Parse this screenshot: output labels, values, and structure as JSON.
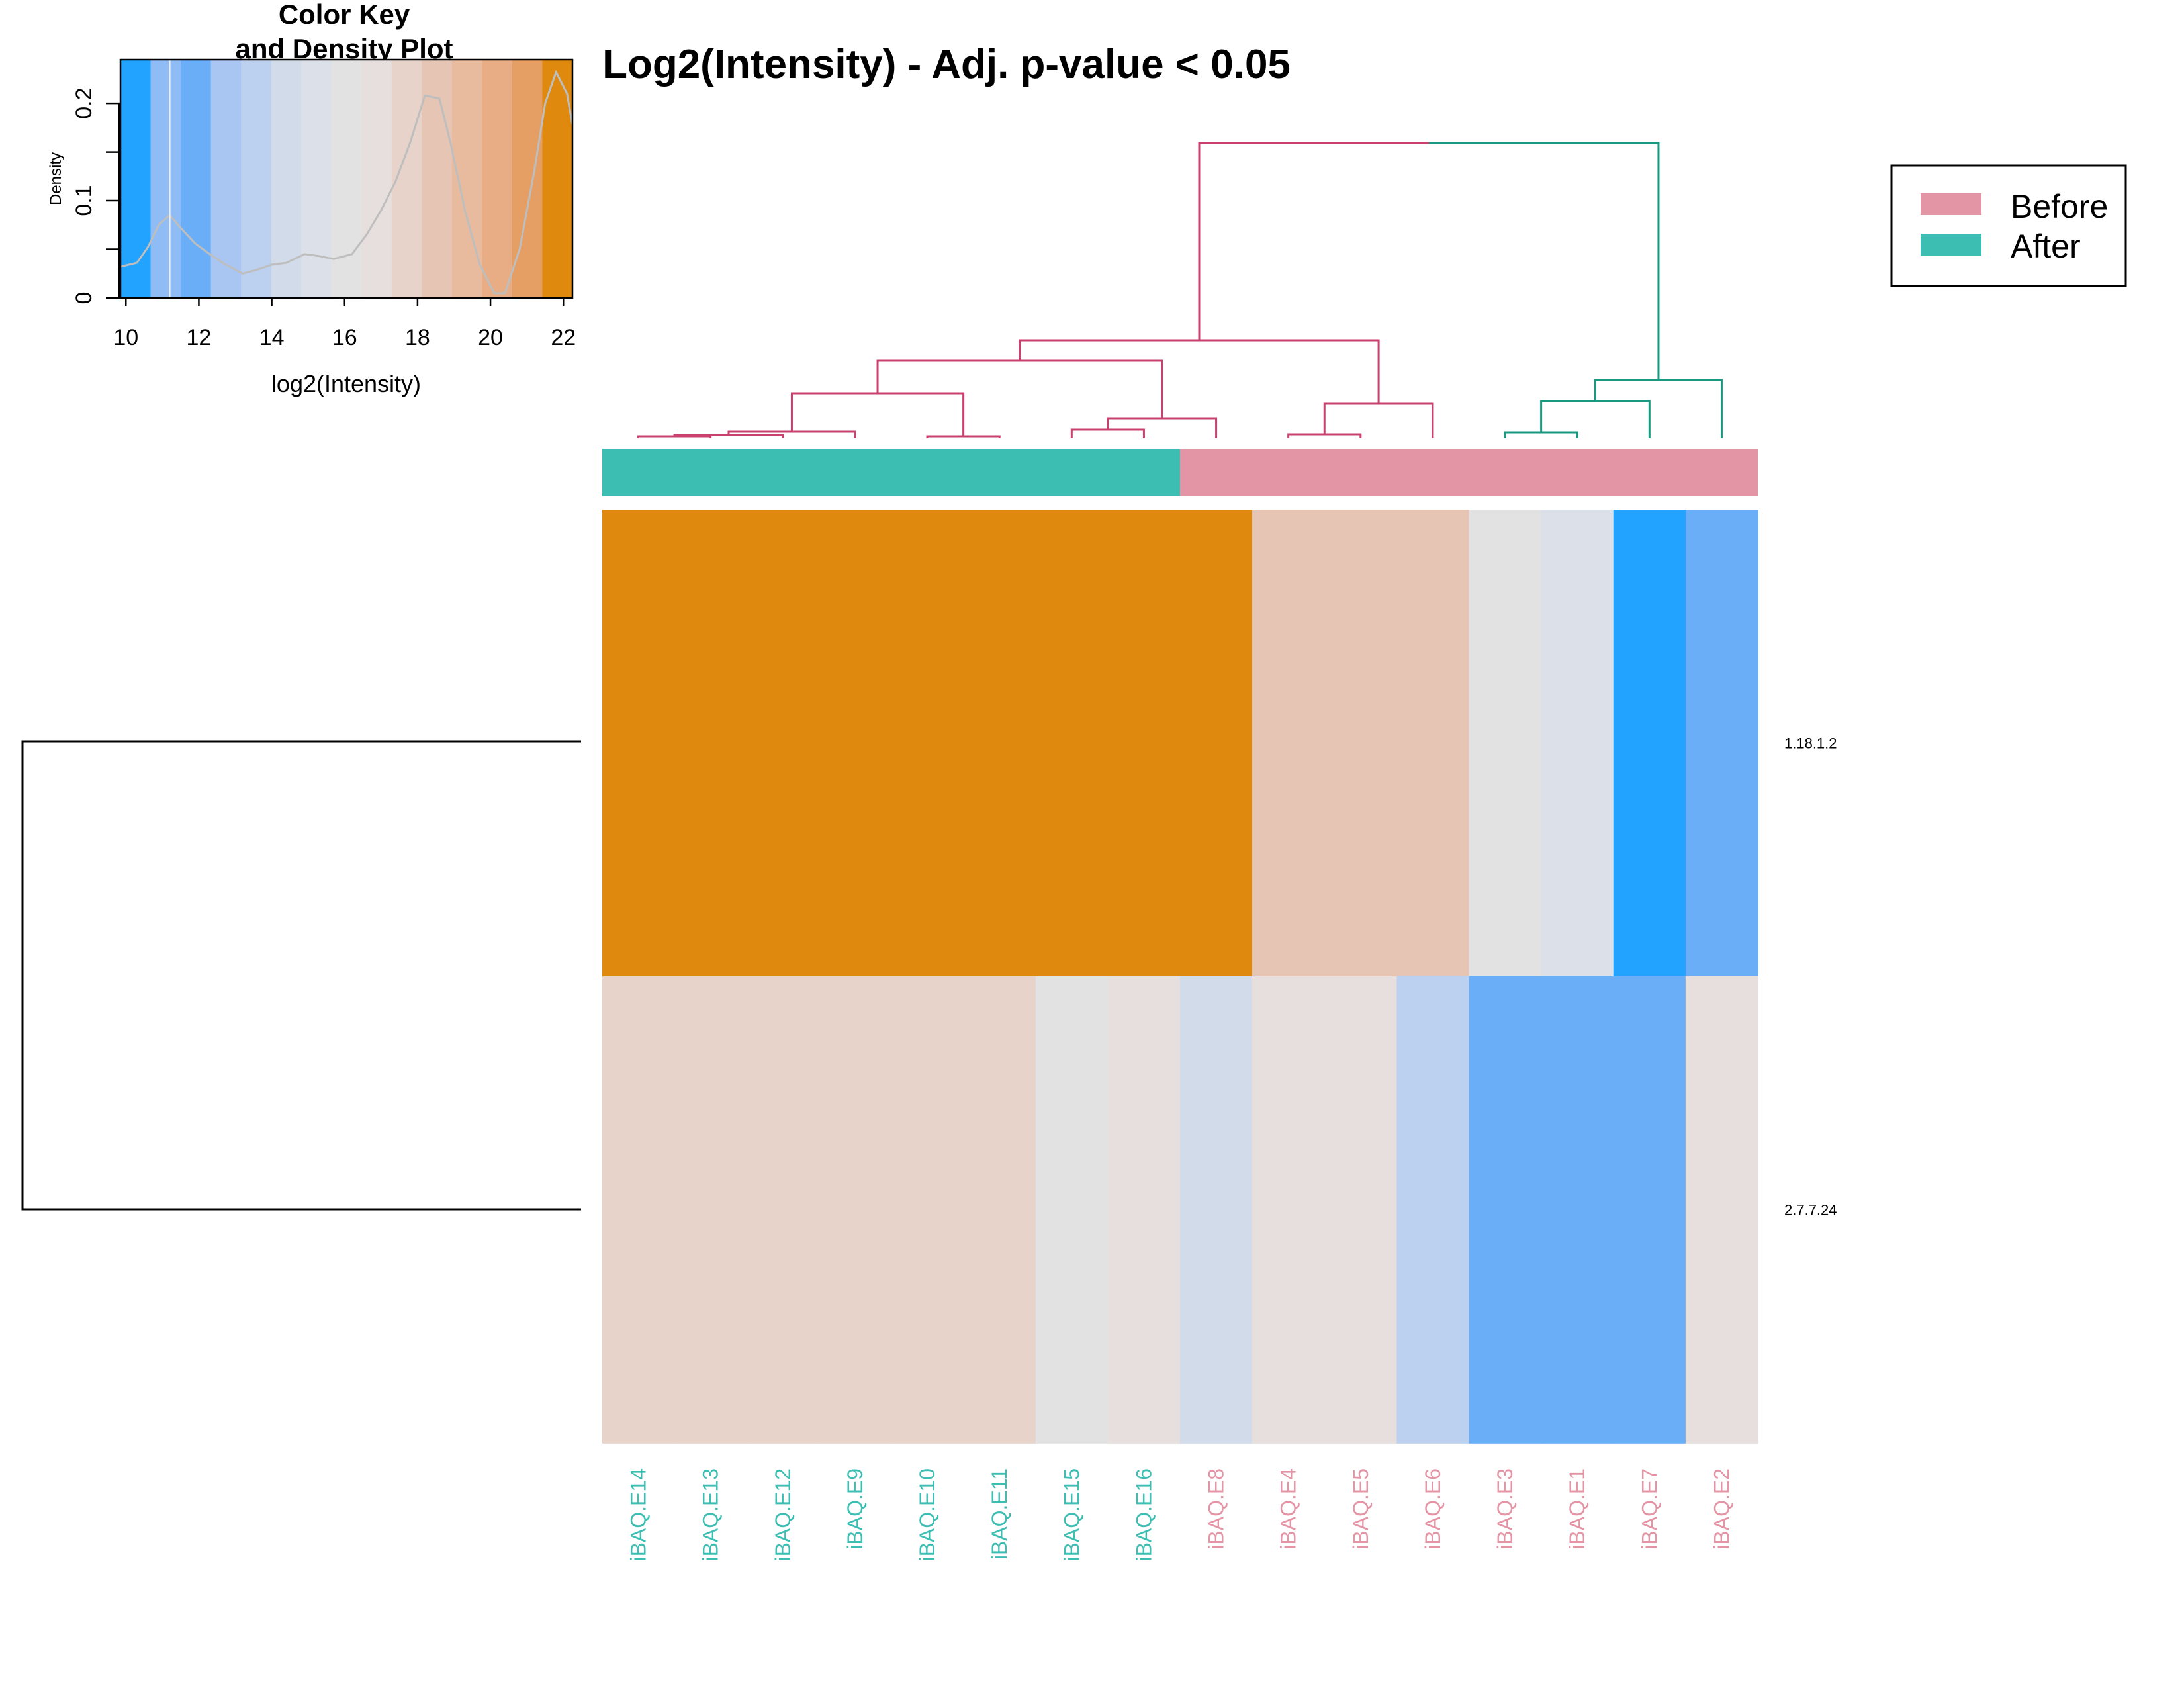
{
  "chart_data": {
    "type": "heatmap",
    "title": "Log2(Intensity) - Adj. p-value < 0.05",
    "columns": [
      "iBAQ.E14",
      "iBAQ.E13",
      "iBAQ.E12",
      "iBAQ.E9",
      "iBAQ.E10",
      "iBAQ.E11",
      "iBAQ.E15",
      "iBAQ.E16",
      "iBAQ.E8",
      "iBAQ.E4",
      "iBAQ.E5",
      "iBAQ.E6",
      "iBAQ.E3",
      "iBAQ.E1",
      "iBAQ.E7",
      "iBAQ.E2"
    ],
    "column_groups": [
      "After",
      "After",
      "After",
      "After",
      "After",
      "After",
      "After",
      "After",
      "Before",
      "Before",
      "Before",
      "Before",
      "Before",
      "Before",
      "Before",
      "Before"
    ],
    "rows": [
      "1.18.1.2",
      "2.7.7.24"
    ],
    "values": [
      [
        22.0,
        22.0,
        22.0,
        22.0,
        22.0,
        22.0,
        22.0,
        22.0,
        22.0,
        18.5,
        18.5,
        18.5,
        15.8,
        15.0,
        10.2,
        12.3
      ],
      [
        17.8,
        17.8,
        17.8,
        17.8,
        17.8,
        17.8,
        16.0,
        16.6,
        14.2,
        17.2,
        17.2,
        13.7,
        11.6,
        11.6,
        11.6,
        16.7
      ]
    ],
    "group_colors": {
      "Before": "#E495A5",
      "After": "#3DBEB2"
    },
    "legend": {
      "placement": "top-right",
      "entries": [
        "Before",
        "After"
      ]
    },
    "color_key": {
      "title_line1": "Color Key",
      "title_line2": "and Density Plot",
      "xlabel": "log2(Intensity)",
      "ylabel": "Density",
      "xlim": [
        9.85,
        22.25
      ],
      "ylim": [
        0,
        0.245
      ],
      "xticks": [
        "10",
        "12",
        "14",
        "16",
        "18",
        "20",
        "22"
      ],
      "yticks": [
        "0",
        "0.1",
        "0.2"
      ],
      "color_bins": [
        "#21A3FF",
        "#8FBCF5",
        "#6AAEF8",
        "#A9C6F2",
        "#BCD0EF",
        "#D1DBE9",
        "#DCE0E8",
        "#E2E2E2",
        "#E6DFDD",
        "#E7D3C9",
        "#E7C5B4",
        "#E8BB9F",
        "#E8AD84",
        "#E59E63",
        "#E0890F"
      ],
      "density": {
        "x": [
          9.85,
          10.3,
          10.6,
          10.9,
          11.2,
          11.5,
          11.9,
          12.3,
          12.7,
          13.2,
          13.6,
          14.0,
          14.4,
          14.9,
          15.3,
          15.7,
          16.2,
          16.6,
          17.0,
          17.4,
          17.8,
          18.2,
          18.6,
          18.9,
          19.3,
          19.7,
          20.1,
          20.4,
          20.8,
          21.2,
          21.5,
          21.8,
          22.1,
          22.25
        ],
        "y": [
          0.032,
          0.036,
          0.052,
          0.075,
          0.085,
          0.072,
          0.056,
          0.045,
          0.035,
          0.025,
          0.029,
          0.034,
          0.036,
          0.045,
          0.043,
          0.04,
          0.045,
          0.065,
          0.09,
          0.12,
          0.16,
          0.208,
          0.205,
          0.16,
          0.09,
          0.035,
          0.005,
          0.005,
          0.05,
          0.13,
          0.2,
          0.232,
          0.21,
          0.178
        ]
      },
      "density_color": "#BEBEBE",
      "value_line": 11.2
    },
    "column_dendrogram": {
      "after_color": "#C9406E",
      "before_color": "#199A80"
    }
  }
}
